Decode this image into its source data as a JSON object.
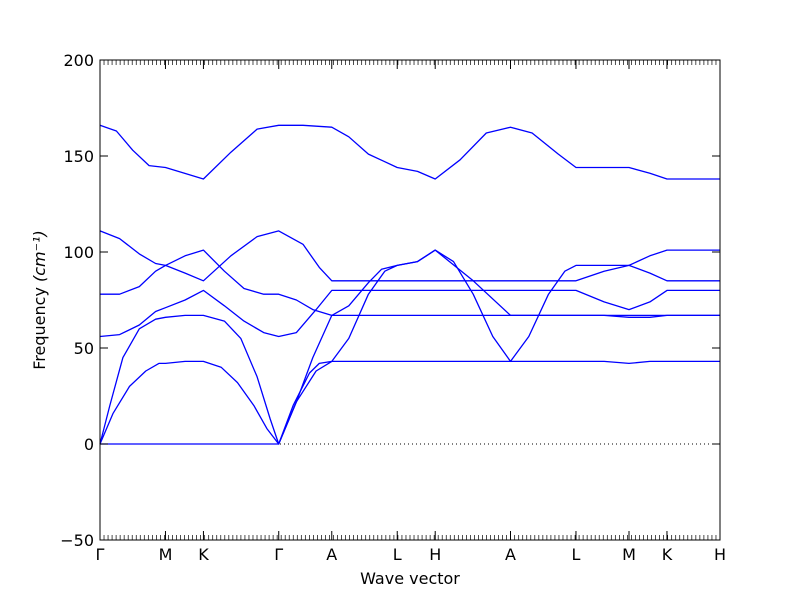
{
  "chart_data": {
    "type": "line",
    "xlabel": "Wave vector",
    "ylabel": "Frequency",
    "ylabel_unit": "(cm⁻¹)",
    "ylim": [
      -50,
      200
    ],
    "y_ticks": [
      -50,
      0,
      50,
      100,
      150,
      200
    ],
    "y_tick_labels": [
      "−50",
      "0",
      "50",
      "100",
      "150",
      "200"
    ],
    "grid": false,
    "zero_line": {
      "y": 0,
      "style": "dotted"
    },
    "x_ticks": [
      {
        "label": "Γ",
        "x": 0
      },
      {
        "label": "M",
        "x": 1.0
      },
      {
        "label": "K",
        "x": 1.58
      },
      {
        "label": "Γ",
        "x": 2.73
      },
      {
        "label": "A",
        "x": 3.54
      },
      {
        "label": "L",
        "x": 4.54
      },
      {
        "label": "H",
        "x": 5.12
      },
      {
        "label": "A",
        "x": 6.27
      },
      {
        "label": "L",
        "x": 7.27
      },
      {
        "label": "M",
        "x": 8.08
      },
      {
        "label": "K",
        "x": 8.66
      },
      {
        "label": "H",
        "x": 9.47
      }
    ],
    "xlim": [
      0,
      9.47
    ],
    "series_color": "#0000ff",
    "series": [
      {
        "x": [
          0,
          0.25,
          0.5,
          0.75,
          1.0,
          1.29,
          1.58,
          2.0,
          2.4,
          2.73,
          3.1,
          3.54,
          3.8,
          4.1,
          4.54,
          4.85,
          5.12,
          5.5,
          5.9,
          6.27,
          6.6,
          7.0,
          7.27,
          7.7,
          8.08,
          8.4,
          8.66,
          9.1,
          9.47
        ],
        "values": [
          166,
          163,
          153,
          145,
          144,
          141,
          138,
          152,
          164,
          166,
          166,
          165,
          160,
          151,
          144,
          142,
          138,
          148,
          162,
          165,
          162,
          151,
          144,
          144,
          144,
          141,
          138,
          138,
          138
        ]
      },
      {
        "x": [
          0,
          0.3,
          0.6,
          0.85,
          1.0,
          1.3,
          1.58,
          2.0,
          2.4,
          2.73,
          3.1,
          3.35,
          3.54,
          4.0,
          4.54,
          4.85,
          5.12,
          5.7,
          6.27,
          6.8,
          7.27,
          7.7,
          8.08,
          8.4,
          8.66,
          9.1,
          9.47
        ],
        "values": [
          111,
          107,
          99,
          94,
          93,
          89,
          85,
          98,
          108,
          111,
          104,
          92,
          85,
          85,
          85,
          85,
          85,
          85,
          85,
          85,
          85,
          90,
          93,
          89,
          85,
          85,
          85
        ]
      },
      {
        "x": [
          0,
          0.3,
          0.6,
          0.85,
          1.0,
          1.3,
          1.58,
          1.9,
          2.2,
          2.5,
          2.73,
          3.0,
          3.25,
          3.54,
          3.8,
          4.1,
          4.3,
          4.54,
          4.85,
          5.12,
          5.4,
          5.7,
          6.0,
          6.27,
          6.55,
          6.85,
          7.1,
          7.27,
          7.7,
          8.08,
          8.4,
          8.66,
          9.1,
          9.47
        ],
        "values": [
          78,
          78,
          82,
          90,
          93,
          98,
          101,
          90,
          81,
          78,
          78,
          75,
          70,
          67,
          72,
          84,
          91,
          93,
          95,
          101,
          95,
          78,
          56,
          43,
          56,
          78,
          90,
          93,
          93,
          93,
          98,
          101,
          101,
          101
        ]
      },
      {
        "x": [
          0,
          0.3,
          0.6,
          0.85,
          1.0,
          1.3,
          1.58,
          1.9,
          2.2,
          2.5,
          2.73,
          3.0,
          3.3,
          3.54,
          4.0,
          4.54,
          5.12,
          5.7,
          6.27,
          6.8,
          7.27,
          7.7,
          8.08,
          8.4,
          8.66,
          9.1,
          9.47
        ],
        "values": [
          56,
          57,
          62,
          69,
          71,
          75,
          80,
          72,
          64,
          58,
          56,
          58,
          70,
          80,
          80,
          80,
          80,
          80,
          80,
          80,
          80,
          74,
          70,
          74,
          80,
          80,
          80
        ]
      },
      {
        "x": [
          0,
          0.15,
          0.35,
          0.6,
          0.85,
          1.0,
          1.3,
          1.58,
          1.9,
          2.15,
          2.4,
          2.6,
          2.73,
          3.0,
          3.25,
          3.54,
          4.0,
          4.54,
          5.12,
          5.7,
          6.27,
          6.8,
          7.27,
          7.7,
          8.08,
          8.4,
          8.66,
          9.1,
          9.47
        ],
        "values": [
          0,
          20,
          45,
          60,
          65,
          66,
          67,
          67,
          64,
          55,
          35,
          13,
          0,
          22,
          45,
          67,
          67,
          67,
          67,
          67,
          67,
          67,
          67,
          67,
          66,
          66,
          67,
          67,
          67
        ]
      },
      {
        "x": [
          0,
          0.2,
          0.45,
          0.7,
          0.9,
          1.0,
          1.3,
          1.58,
          1.85,
          2.1,
          2.35,
          2.55,
          2.73,
          2.95,
          3.2,
          3.35,
          3.54,
          3.8,
          4.1,
          4.35,
          4.54,
          4.85,
          5.12,
          5.7,
          6.27,
          6.8,
          7.27,
          7.7,
          8.08,
          8.4,
          8.66,
          9.1,
          9.47
        ],
        "values": [
          0,
          16,
          30,
          38,
          42,
          42,
          43,
          43,
          40,
          32,
          20,
          8,
          0,
          20,
          37,
          42,
          43,
          55,
          78,
          90,
          93,
          95,
          101,
          85,
          67,
          67,
          67,
          67,
          67,
          67,
          67,
          67,
          67
        ]
      },
      {
        "x": [
          0,
          0.4,
          1.0,
          1.58,
          2.73,
          3.0,
          3.3,
          3.54,
          4.0,
          4.54,
          5.12,
          5.7,
          6.27,
          6.8,
          7.27,
          7.7,
          8.08,
          8.4,
          8.66,
          9.1,
          9.47
        ],
        "values": [
          0,
          0,
          0,
          0,
          0,
          22,
          38,
          43,
          43,
          43,
          43,
          43,
          43,
          43,
          43,
          43,
          42,
          43,
          43,
          43,
          43
        ]
      }
    ]
  }
}
